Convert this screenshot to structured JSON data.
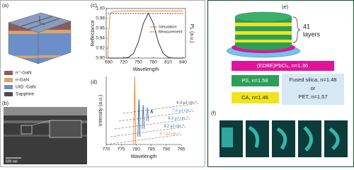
{
  "panels": {
    "a": {
      "label": "(a)",
      "legend": [
        {
          "name": "n⁺-GaN",
          "color": "#8c5b5e"
        },
        {
          "name": "n-GaN",
          "color": "#d5a66a"
        },
        {
          "name": "UID -GaN",
          "color": "#6d8fc9"
        },
        {
          "name": "Sapphire",
          "color": "#4d4d4d"
        }
      ]
    },
    "b": {
      "label": "(b)",
      "scale_bar": "500 nm"
    },
    "c": {
      "label": "(c)"
    },
    "d": {
      "label": "(d)"
    },
    "e": {
      "label": "(e)",
      "stack_label": [
        "41",
        "layers"
      ],
      "perovskite": "(EDBE)PbCl₄, n=1.36",
      "ps": "PS, n=1.58",
      "ca": "CA, n=1.46",
      "substrate": [
        "Fused silica, n=1.48",
        "or",
        "PET, n=1.57"
      ]
    },
    "f": {
      "label": "(f)"
    }
  },
  "chart_data": [
    {
      "type": "line",
      "xlabel": "Wavelength",
      "ylabel": "Reflectance",
      "y2label": "PL (a.u.)",
      "xlim": [
        685,
        845
      ],
      "xticks": [
        690,
        720,
        750,
        780,
        810,
        840
      ],
      "ylim": [
        0.9,
        1.0
      ],
      "yticks": [
        {
          "value": 0.9,
          "label": "0.90"
        },
        0.92,
        0.94,
        0.96,
        0.98,
        {
          "value": 1,
          "label": "1.00"
        }
      ],
      "y2lim": [
        0,
        1.1
      ],
      "series": [
        {
          "name": "Simulation",
          "color": "#f07f2a",
          "x": [
            688,
            690,
            693,
            700,
            720,
            750,
            780,
            810,
            840
          ],
          "values": [
            0.9,
            0.95,
            0.99,
            0.994,
            0.995,
            0.995,
            0.995,
            0.995,
            0.995
          ]
        },
        {
          "name": "Measurement",
          "color": "#3c4a5a",
          "dash": true,
          "x": [
            688,
            720,
            750,
            780,
            810,
            840
          ],
          "values": [
            0.99,
            0.99,
            0.99,
            0.99,
            0.99,
            0.99
          ]
        },
        {
          "color": "#222222",
          "axis": "y2",
          "x": [
            690,
            700,
            710,
            720,
            730,
            740,
            750,
            760,
            770,
            780,
            790,
            800,
            810,
            820,
            830,
            840
          ],
          "values": [
            0,
            0,
            0.0001,
            0.002,
            0.017,
            0.1,
            0.36,
            0.77,
            1.0,
            0.77,
            0.36,
            0.1,
            0.017,
            0.002,
            0,
            0
          ]
        }
      ]
    },
    {
      "type": "waterfall",
      "xlabel": "Wavelength",
      "ylabel": "Intensity (a.u.)",
      "xlim": [
        770,
        795
      ],
      "xticks": [
        770,
        775,
        780,
        785,
        790,
        795
      ],
      "ylim": [
        0,
        1
      ],
      "series": [
        {
          "name": "9.7 μJ cm⁻²",
          "color": "#f07f2a",
          "x": [
            779.5
          ],
          "values": [
            1.0
          ]
        },
        {
          "name": "9.2 μJ cm⁻²",
          "color": "#2b4f8a",
          "x": [
            779.5
          ],
          "values": [
            0.55
          ]
        },
        {
          "name": "8.3 μJ cm⁻²",
          "color": "#3a66b0",
          "x": [
            779.5
          ],
          "values": [
            0.35
          ]
        },
        {
          "name": "7.6 μJ cm⁻²",
          "color": "#4a7bd0",
          "x": [
            779.5
          ],
          "values": [
            0.2
          ]
        },
        {
          "name": "6.3 μJ cm⁻²",
          "color": "#333333",
          "x": [
            779.5
          ],
          "values": [
            0.05
          ]
        }
      ]
    }
  ]
}
